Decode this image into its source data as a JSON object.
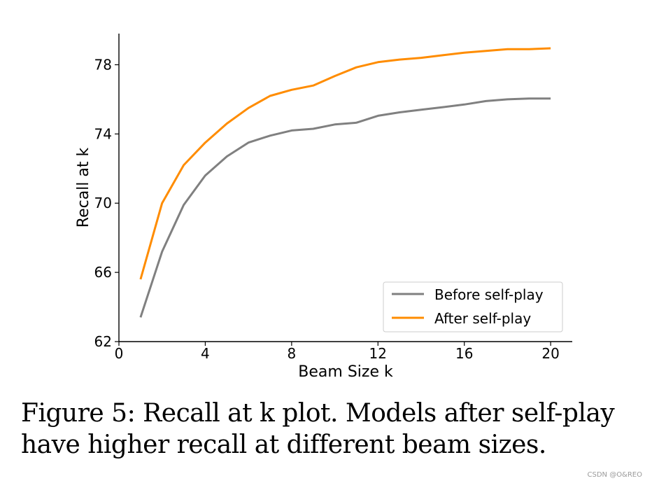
{
  "chart_data": {
    "type": "line",
    "title": "",
    "xlabel": "Beam Size k",
    "ylabel": "Recall at k",
    "xlim": [
      0,
      21
    ],
    "ylim": [
      62,
      79.8
    ],
    "xticks": [
      0,
      4,
      8,
      12,
      16,
      20
    ],
    "xtick_labels": [
      "0",
      "4",
      "8",
      "12",
      "16",
      "20"
    ],
    "yticks": [
      62,
      66,
      70,
      74,
      78
    ],
    "ytick_labels": [
      "62",
      "66",
      "70",
      "74",
      "78"
    ],
    "grid": false,
    "legend_position": "lower-right",
    "x": [
      1,
      2,
      3,
      4,
      5,
      6,
      7,
      8,
      9,
      10,
      11,
      12,
      13,
      14,
      15,
      16,
      17,
      18,
      19,
      20
    ],
    "series": [
      {
        "name": "Before self-play",
        "color": "#808080",
        "values": [
          63.4,
          67.2,
          69.9,
          71.6,
          72.7,
          73.5,
          73.9,
          74.2,
          74.3,
          74.55,
          74.65,
          75.05,
          75.25,
          75.4,
          75.55,
          75.7,
          75.9,
          76.0,
          76.05,
          76.05
        ]
      },
      {
        "name": "After self-play",
        "color": "#ff8c00",
        "values": [
          65.6,
          70.0,
          72.2,
          73.5,
          74.6,
          75.5,
          76.2,
          76.55,
          76.8,
          77.35,
          77.85,
          78.15,
          78.3,
          78.4,
          78.55,
          78.7,
          78.8,
          78.9,
          78.9,
          78.95
        ]
      }
    ]
  },
  "caption": {
    "text": "Figure 5: Recall at k plot. Models after self-play have higher recall at different beam sizes."
  },
  "watermark": {
    "text": "CSDN @O&REO"
  }
}
